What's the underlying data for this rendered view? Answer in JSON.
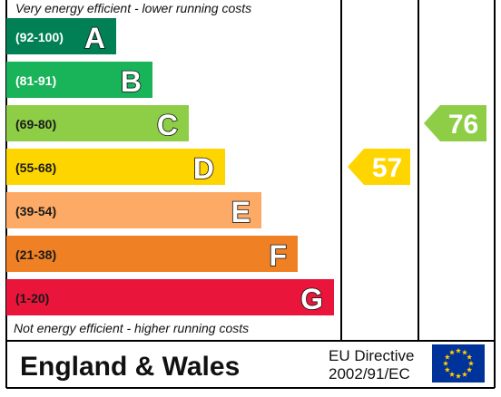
{
  "chart_data": {
    "type": "bar",
    "top_caption": "Very energy efficient - lower running costs",
    "bottom_caption": "Not energy efficient - higher running costs",
    "bands": [
      {
        "letter": "A",
        "range": "(92-100)",
        "color": "#008054",
        "light_text": true
      },
      {
        "letter": "B",
        "range": "(81-91)",
        "color": "#19b459",
        "light_text": true
      },
      {
        "letter": "C",
        "range": "(69-80)",
        "color": "#8dce46",
        "light_text": false
      },
      {
        "letter": "D",
        "range": "(55-68)",
        "color": "#ffd500",
        "light_text": false
      },
      {
        "letter": "E",
        "range": "(39-54)",
        "color": "#fcaa65",
        "light_text": false
      },
      {
        "letter": "F",
        "range": "(21-38)",
        "color": "#ef8023",
        "light_text": false
      },
      {
        "letter": "G",
        "range": "(1-20)",
        "color": "#e9153b",
        "light_text": false
      }
    ],
    "current": {
      "value": 57,
      "band": "D",
      "color": "#ffd500"
    },
    "potential": {
      "value": 76,
      "band": "C",
      "color": "#8dce46"
    }
  },
  "footer": {
    "title": "England & Wales",
    "directive_line1": "EU Directive",
    "directive_line2": "2002/91/EC",
    "flag_icon": "eu-flag-icon",
    "flag_color": "#003399",
    "star_color": "#ffcc00"
  }
}
